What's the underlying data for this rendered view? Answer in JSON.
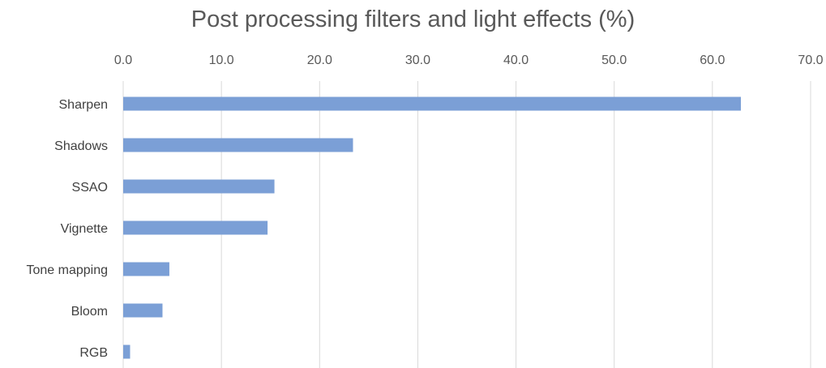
{
  "chart_data": {
    "type": "bar",
    "orientation": "horizontal",
    "title": "Post processing filters and light effects (%)",
    "xlabel": "",
    "ylabel": "",
    "categories": [
      "Sharpen",
      "Shadows",
      "SSAO",
      "Vignette",
      "Tone mapping",
      "Bloom",
      "RGB"
    ],
    "values": [
      62.9,
      23.4,
      15.4,
      14.7,
      4.7,
      4.0,
      0.7
    ],
    "xlim": [
      0,
      70
    ],
    "x_ticks": [
      "0.0",
      "10.0",
      "20.0",
      "30.0",
      "40.0",
      "50.0",
      "60.0",
      "70.0"
    ],
    "x_axis_position": "top",
    "grid": true,
    "legend": "none",
    "bar_color": "#7b9fd6"
  }
}
